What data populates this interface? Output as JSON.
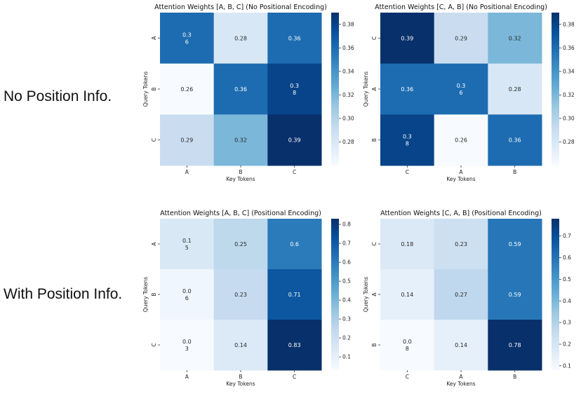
{
  "row_labels": [
    "No Position Info.",
    "With Position Info."
  ],
  "colors": {
    "scale_low": "#f7fbff",
    "scale_mid": "#6baed6",
    "scale_high": "#08306b"
  },
  "chart_data": [
    {
      "type": "heatmap",
      "title": "Attention Weights [A, B, C] (No Positional Encoding)",
      "xlabel": "Key Tokens",
      "ylabel": "Query Tokens",
      "x_ticks": [
        "A",
        "B",
        "C"
      ],
      "y_ticks": [
        "A",
        "B",
        "C"
      ],
      "values": [
        [
          0.36,
          0.28,
          0.36
        ],
        [
          0.26,
          0.36,
          0.38
        ],
        [
          0.29,
          0.32,
          0.39
        ]
      ],
      "labels": [
        [
          "0.3\n6",
          "0.28",
          "0.36"
        ],
        [
          "0.26",
          "0.36",
          "0.3\n8"
        ],
        [
          "0.29",
          "0.32",
          "0.39"
        ]
      ],
      "vmin": 0.26,
      "vmax": 0.39,
      "colorbar_ticks": [
        "0.28",
        "0.30",
        "0.32",
        "0.34",
        "0.36",
        "0.38"
      ]
    },
    {
      "type": "heatmap",
      "title": "Attention Weights [C, A, B] (No Positional Encoding)",
      "xlabel": "Key Tokens",
      "ylabel": "Query Tokens",
      "x_ticks": [
        "C",
        "A",
        "B"
      ],
      "y_ticks": [
        "C",
        "A",
        "B"
      ],
      "values": [
        [
          0.39,
          0.29,
          0.32
        ],
        [
          0.36,
          0.36,
          0.28
        ],
        [
          0.38,
          0.26,
          0.36
        ]
      ],
      "labels": [
        [
          "0.39",
          "0.29",
          "0.32"
        ],
        [
          "0.36",
          "0.3\n6",
          "0.28"
        ],
        [
          "0.3\n8",
          "0.26",
          "0.36"
        ]
      ],
      "vmin": 0.26,
      "vmax": 0.39,
      "colorbar_ticks": [
        "0.28",
        "0.30",
        "0.32",
        "0.34",
        "0.36",
        "0.38"
      ]
    },
    {
      "type": "heatmap",
      "title": "Attention Weights [A, B, C] (Positional Encoding)",
      "xlabel": "Key Tokens",
      "ylabel": "Query Tokens",
      "x_ticks": [
        "A",
        "B",
        "C"
      ],
      "y_ticks": [
        "A",
        "B",
        "C"
      ],
      "values": [
        [
          0.15,
          0.25,
          0.6
        ],
        [
          0.06,
          0.23,
          0.71
        ],
        [
          0.03,
          0.14,
          0.83
        ]
      ],
      "labels": [
        [
          "0.1\n5",
          "0.25",
          "0.6"
        ],
        [
          "0.0\n6",
          "0.23",
          "0.71"
        ],
        [
          "0.0\n3",
          "0.14",
          "0.83"
        ]
      ],
      "vmin": 0.03,
      "vmax": 0.83,
      "colorbar_ticks": [
        "0.1",
        "0.2",
        "0.3",
        "0.4",
        "0.5",
        "0.6",
        "0.7",
        "0.8"
      ]
    },
    {
      "type": "heatmap",
      "title": "Attention Weights [C, A, B] (Positional Encoding)",
      "xlabel": "Key Tokens",
      "ylabel": "Query Tokens",
      "x_ticks": [
        "C",
        "A",
        "B"
      ],
      "y_ticks": [
        "C",
        "A",
        "B"
      ],
      "values": [
        [
          0.18,
          0.23,
          0.59
        ],
        [
          0.14,
          0.27,
          0.59
        ],
        [
          0.08,
          0.14,
          0.78
        ]
      ],
      "labels": [
        [
          "0.18",
          "0.23",
          "0.59"
        ],
        [
          "0.14",
          "0.27",
          "0.59"
        ],
        [
          "0.0\n8",
          "0.14",
          "0.78"
        ]
      ],
      "vmin": 0.08,
      "vmax": 0.78,
      "colorbar_ticks": [
        "0.1",
        "0.2",
        "0.3",
        "0.4",
        "0.5",
        "0.6",
        "0.7"
      ]
    }
  ]
}
